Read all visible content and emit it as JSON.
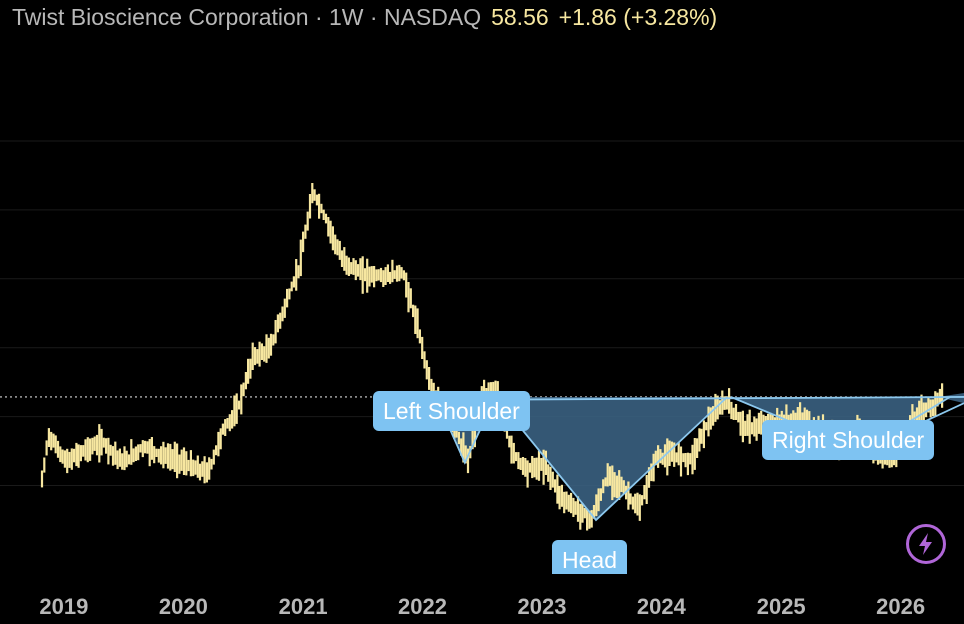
{
  "header": {
    "title": "Twist Bioscience Corporation · 1W · NASDAQ",
    "price": "58.56",
    "change": "+1.86 (+3.28%)"
  },
  "annotations": {
    "left_shoulder": "Left Shoulder",
    "head": "Head",
    "right_shoulder": "Right Shoulder"
  },
  "colors": {
    "background": "#000000",
    "price_bars": "#f7e7a0",
    "pattern_fill": "#3d6688",
    "pattern_outline": "#8cc8ee",
    "callout": "#7ec3f2",
    "flash_icon": "#b066d8"
  },
  "icons": [
    "lightning-bolt-icon"
  ],
  "chart_data": {
    "type": "line",
    "title": "Twist Bioscience Corporation · 1W · NASDAQ",
    "x_axis": {
      "type": "date",
      "tick_labels": [
        "2019",
        "2020",
        "2021",
        "2022",
        "2023",
        "2024",
        "2025",
        "2026"
      ],
      "range": [
        "2018-10-26",
        "2026-06-01"
      ]
    },
    "y_axis": {
      "range": [
        5,
        190
      ],
      "labels_shown": false
    },
    "grid": "horizontal",
    "last_price": 58.56,
    "neckline_price": 58.56,
    "series": [
      {
        "values_style": "weekly-bars",
        "x": [
          "2018-10-26",
          "2018-11-15",
          "2019-01-10",
          "2019-03-01",
          "2019-05-01",
          "2019-07-01",
          "2019-09-01",
          "2019-11-01",
          "2019-12-20",
          "2020-02-10",
          "2020-03-18",
          "2020-05-01",
          "2020-06-15",
          "2020-08-01",
          "2020-09-20",
          "2020-11-01",
          "2020-12-20",
          "2021-02-01",
          "2021-03-15",
          "2021-05-01",
          "2021-07-01",
          "2021-09-15",
          "2021-11-01",
          "2021-12-15",
          "2022-02-01",
          "2022-04-15",
          "2022-05-20",
          "2022-07-01",
          "2022-08-12",
          "2022-10-01",
          "2022-11-15",
          "2023-01-10",
          "2023-03-01",
          "2023-04-15",
          "2023-06-01",
          "2023-07-20",
          "2023-09-01",
          "2023-10-25",
          "2023-12-15",
          "2024-02-15",
          "2024-04-01",
          "2024-05-20",
          "2024-07-15",
          "2024-09-15",
          "2024-11-15",
          "2025-01-15",
          "2025-03-15",
          "2025-05-01",
          "2025-07-01",
          "2025-08-25",
          "2025-10-15",
          "2025-12-10",
          "2026-02-10",
          "2026-04-10",
          "2026-05-01"
        ],
        "values": [
          22,
          42,
          30,
          35,
          39,
          30,
          37,
          33,
          31,
          27,
          26,
          44,
          53,
          76,
          79,
          96,
          115,
          148,
          135,
          118,
          112,
          111,
          113,
          90,
          60,
          43,
          30,
          58,
          62,
          35,
          27,
          29,
          15,
          10,
          5,
          24,
          20,
          9,
          32,
          33,
          31,
          47,
          57,
          45,
          46,
          49,
          48,
          45,
          38,
          44,
          33,
          31,
          49,
          55,
          58.56
        ]
      }
    ]
  }
}
